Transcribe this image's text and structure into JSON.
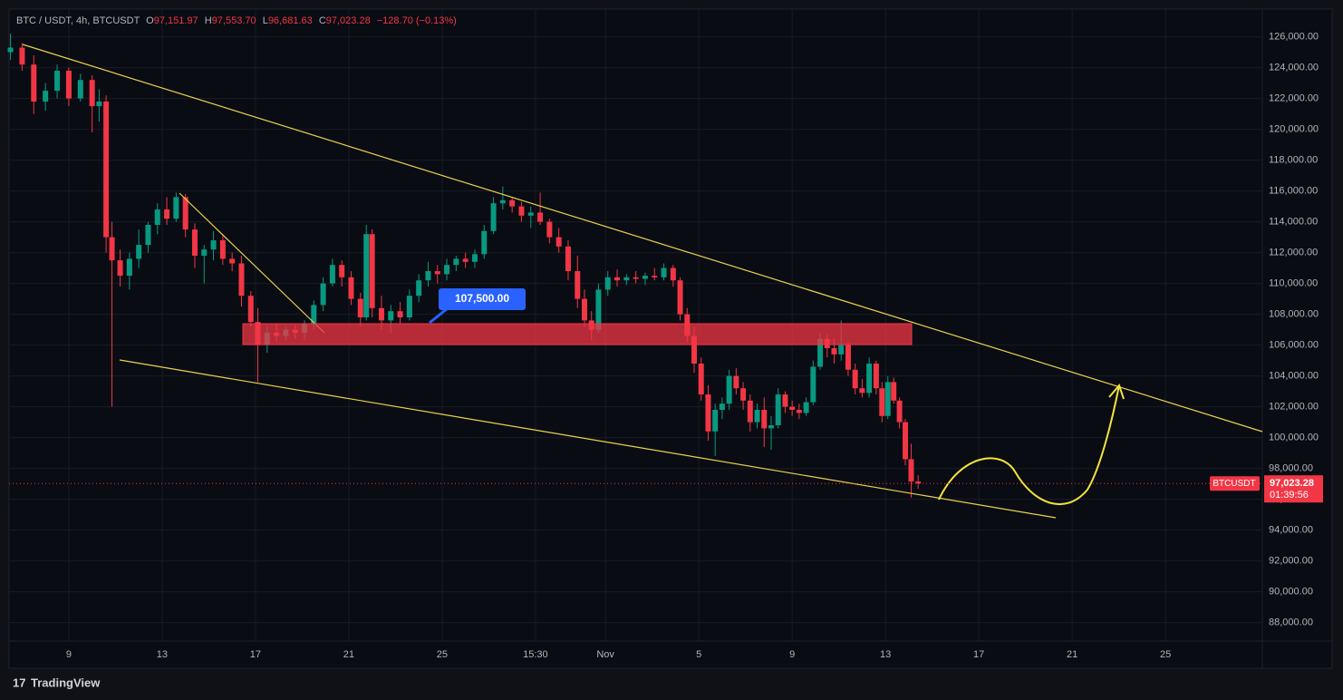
{
  "chart_data": {
    "type": "candlestick",
    "legend_line": {
      "symbol": "BTC / USDT, 4h, BTCUSDT",
      "o_label": "O",
      "o": "97,151.97",
      "h_label": "H",
      "h": "97,553.70",
      "l_label": "L",
      "l": "96,681.63",
      "c_label": "C",
      "c": "97,023.28",
      "change": "−128.70 (−0.13%)"
    },
    "x": [
      6.5,
      7.0,
      7.5,
      8.0,
      8.5,
      9.0,
      9.5,
      10.0,
      10.3,
      10.6,
      10.85,
      11.2,
      11.6,
      12.0,
      12.4,
      12.8,
      13.2,
      13.6,
      14.0,
      14.4,
      14.8,
      15.2,
      15.6,
      16.0,
      16.4,
      16.8,
      17.1,
      17.5,
      17.9,
      18.3,
      18.7,
      19.1,
      19.5,
      19.9,
      20.3,
      20.7,
      21.1,
      21.5,
      21.75,
      22.0,
      22.4,
      22.8,
      23.2,
      23.6,
      24.0,
      24.4,
      24.8,
      25.2,
      25.6,
      26.0,
      26.4,
      26.8,
      27.2,
      27.6,
      28.0,
      28.4,
      28.8,
      29.2,
      29.6,
      30.0,
      30.4,
      30.8,
      31.1,
      31.4,
      31.7,
      32.1,
      32.5,
      32.9,
      33.3,
      33.7,
      34.1,
      34.5,
      34.9,
      35.2,
      35.5,
      35.8,
      36.1,
      36.4,
      36.7,
      37.0,
      37.3,
      37.6,
      37.9,
      38.2,
      38.5,
      38.8,
      39.1,
      39.4,
      39.7,
      40.0,
      40.3,
      40.6,
      40.9,
      41.2,
      41.5,
      41.8,
      42.1,
      42.4,
      42.7,
      43.0,
      43.3,
      43.6,
      43.85,
      44.1,
      44.35,
      44.6,
      44.85,
      45.1,
      45.4
    ],
    "open": [
      125000,
      125300,
      124200,
      121800,
      122500,
      123800,
      122000,
      123200,
      121500,
      121800,
      113000,
      111500,
      110500,
      111600,
      112500,
      113800,
      114800,
      114200,
      115600,
      113500,
      111800,
      112200,
      112800,
      111600,
      111300,
      109200,
      107500,
      106000,
      106800,
      106600,
      107000,
      106800,
      107400,
      108600,
      110000,
      111200,
      110400,
      109000,
      107800,
      113200,
      108400,
      107600,
      108200,
      107800,
      109200,
      110200,
      110800,
      110600,
      111200,
      111600,
      111400,
      111900,
      113400,
      115200,
      115400,
      115000,
      114400,
      114600,
      114000,
      113000,
      112400,
      110800,
      109000,
      107600,
      107000,
      109600,
      110400,
      110200,
      110400,
      110300,
      110500,
      110400,
      111000,
      110200,
      108000,
      106600,
      104800,
      102800,
      100400,
      101800,
      102200,
      104000,
      103200,
      102400,
      101000,
      101800,
      100600,
      100800,
      102800,
      102000,
      101800,
      101600,
      102300,
      104600,
      106400,
      105800,
      105400,
      106000,
      104400,
      103200,
      102900,
      104800,
      103200,
      101400,
      103600,
      102400,
      101000,
      98600,
      97151.97
    ],
    "high": [
      126200,
      125600,
      124800,
      123000,
      124200,
      124000,
      123600,
      123500,
      122600,
      122200,
      114000,
      112200,
      112000,
      113500,
      114000,
      115200,
      115600,
      115900,
      115800,
      113900,
      112500,
      113400,
      113200,
      112000,
      111800,
      109500,
      108400,
      107200,
      107400,
      107200,
      107300,
      107600,
      108900,
      110400,
      111600,
      111500,
      110800,
      109400,
      113800,
      113500,
      109200,
      108600,
      108800,
      109600,
      110600,
      111400,
      111200,
      111600,
      111800,
      112000,
      112200,
      113800,
      115600,
      116300,
      115600,
      115300,
      115000,
      115900,
      114200,
      113600,
      112800,
      111800,
      109600,
      108200,
      110000,
      110800,
      110900,
      110600,
      110800,
      110700,
      111000,
      111300,
      111200,
      110400,
      108400,
      107200,
      105200,
      103400,
      102200,
      102600,
      104400,
      104500,
      103600,
      102800,
      102200,
      102600,
      101400,
      103200,
      103000,
      102400,
      102200,
      102600,
      105000,
      106800,
      106700,
      106400,
      107600,
      106200,
      104800,
      103800,
      105200,
      105000,
      103600,
      104000,
      103900,
      102600,
      101200,
      99600,
      97553.7
    ],
    "low": [
      124500,
      123800,
      121000,
      121200,
      122000,
      121500,
      121800,
      119800,
      120500,
      112000,
      102000,
      109800,
      109600,
      111000,
      112000,
      113200,
      113800,
      114000,
      113000,
      111000,
      110000,
      111500,
      111200,
      110800,
      108500,
      107200,
      103600,
      105500,
      106200,
      106300,
      106400,
      106300,
      107000,
      108200,
      109800,
      109800,
      108600,
      107200,
      107600,
      107800,
      107000,
      106800,
      107400,
      107600,
      108800,
      109800,
      110000,
      110200,
      110800,
      111000,
      111000,
      111600,
      113200,
      114800,
      114600,
      114000,
      113600,
      113800,
      112600,
      112000,
      110200,
      108400,
      107200,
      106300,
      106800,
      109200,
      109800,
      109900,
      110000,
      109900,
      110200,
      110200,
      109800,
      107600,
      106200,
      104200,
      102400,
      99800,
      98800,
      101200,
      101800,
      102800,
      101800,
      100400,
      100600,
      99400,
      99200,
      100600,
      101600,
      101400,
      101200,
      101400,
      102100,
      104400,
      105200,
      104800,
      105000,
      104000,
      102800,
      102600,
      102600,
      102800,
      101000,
      101200,
      102200,
      100600,
      98200,
      96100,
      96681.63
    ],
    "close": [
      125300,
      124200,
      121800,
      122500,
      123800,
      122000,
      123200,
      121500,
      121800,
      113000,
      111500,
      110500,
      111600,
      112500,
      113800,
      114800,
      114200,
      115600,
      113500,
      111800,
      112200,
      112800,
      111600,
      111300,
      109200,
      107500,
      106000,
      106800,
      106600,
      107000,
      106800,
      107400,
      108600,
      110000,
      111200,
      110400,
      109000,
      107800,
      113200,
      108400,
      107600,
      108200,
      107800,
      109200,
      110200,
      110800,
      110600,
      111200,
      111600,
      111400,
      111900,
      113400,
      115200,
      115400,
      115000,
      114400,
      114600,
      114000,
      113000,
      112400,
      110800,
      109000,
      107600,
      107000,
      109600,
      110400,
      110200,
      110400,
      110300,
      110500,
      110400,
      111000,
      110200,
      108000,
      106600,
      104800,
      102800,
      100400,
      101800,
      102200,
      104000,
      103200,
      102400,
      101000,
      101800,
      100600,
      100800,
      102800,
      102000,
      101800,
      101600,
      102300,
      104600,
      106400,
      105800,
      105400,
      106000,
      104400,
      103200,
      102900,
      104800,
      103200,
      101400,
      103600,
      102400,
      101000,
      98600,
      97151.97,
      97023.28
    ],
    "colors": {
      "up": "#089981",
      "down": "#f23645"
    },
    "xlim": [
      6.44,
      60.15
    ],
    "ylim": [
      86800,
      127800
    ],
    "xticks": [
      9,
      13,
      17,
      21,
      25,
      {
        "value": 29,
        "label": "15:30"
      },
      {
        "value": 32,
        "label": "Nov"
      },
      {
        "value": 36,
        "label": "5"
      },
      {
        "value": 40,
        "label": "9"
      },
      {
        "value": 44,
        "label": "13"
      },
      {
        "value": 48,
        "label": "17"
      },
      {
        "value": 52,
        "label": "21"
      },
      {
        "value": 56,
        "label": "25"
      }
    ],
    "yticks": [
      {
        "value": 88000,
        "label": "88,000.00"
      },
      {
        "value": 90000,
        "label": "90,000.00"
      },
      {
        "value": 92000,
        "label": "92,000.00"
      },
      {
        "value": 94000,
        "label": "94,000.00"
      },
      {
        "value": 96000,
        "label": "96,000.00"
      },
      {
        "value": 98000,
        "label": "98,000.00"
      },
      {
        "value": 100000,
        "label": "100,000.00"
      },
      {
        "value": 102000,
        "label": "102,000.00"
      },
      {
        "value": 104000,
        "label": "104,000.00"
      },
      {
        "value": 106000,
        "label": "106,000.00"
      },
      {
        "value": 108000,
        "label": "108,000.00"
      },
      {
        "value": 110000,
        "label": "110,000.00"
      },
      {
        "value": 112000,
        "label": "112,000.00"
      },
      {
        "value": 114000,
        "label": "114,000.00"
      },
      {
        "value": 116000,
        "label": "116,000.00"
      },
      {
        "value": 118000,
        "label": "118,000.00"
      },
      {
        "value": 120000,
        "label": "120,000.00"
      },
      {
        "value": 122000,
        "label": "122,000.00"
      },
      {
        "value": 124000,
        "label": "124,000.00"
      },
      {
        "value": 126000,
        "label": "126,000.00"
      }
    ],
    "grid": true,
    "last_price": {
      "value": 97023.28,
      "label": "97,023.28",
      "symbol": "BTCUSDT",
      "countdown": "01:39:56"
    },
    "annotation": "107,500.00",
    "footer": "TradingView"
  }
}
